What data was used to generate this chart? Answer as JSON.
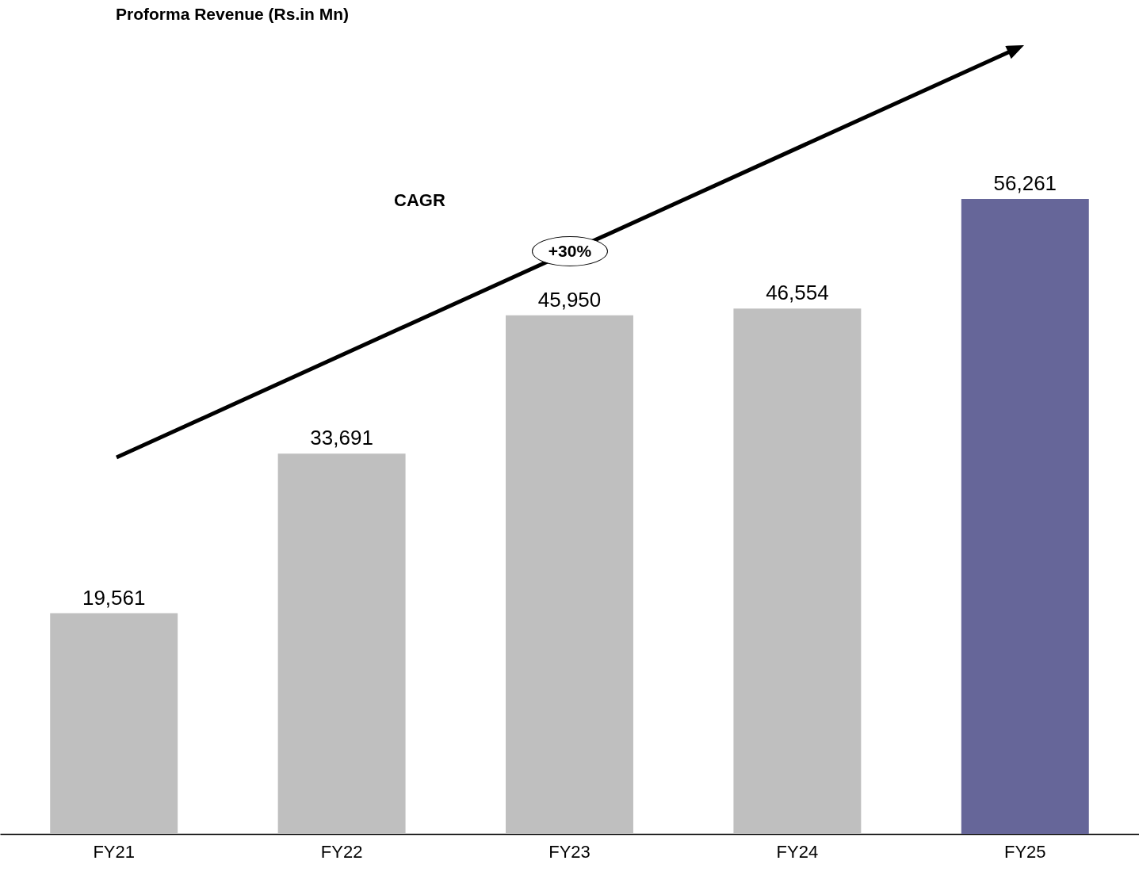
{
  "chart_data": {
    "type": "bar",
    "title": "Proforma Revenue (Rs.in Mn)",
    "categories": [
      "FY21",
      "FY22",
      "FY23",
      "FY24",
      "FY25"
    ],
    "values": [
      19561,
      33691,
      45950,
      46554,
      56261
    ],
    "colors": [
      "#bfbfbf",
      "#bfbfbf",
      "#bfbfbf",
      "#bfbfbf",
      "#666699"
    ],
    "value_labels": [
      "19,561",
      "33,691",
      "45,950",
      "46,554",
      "56,261"
    ],
    "annotations": [
      "CAGR",
      "+30%"
    ]
  }
}
